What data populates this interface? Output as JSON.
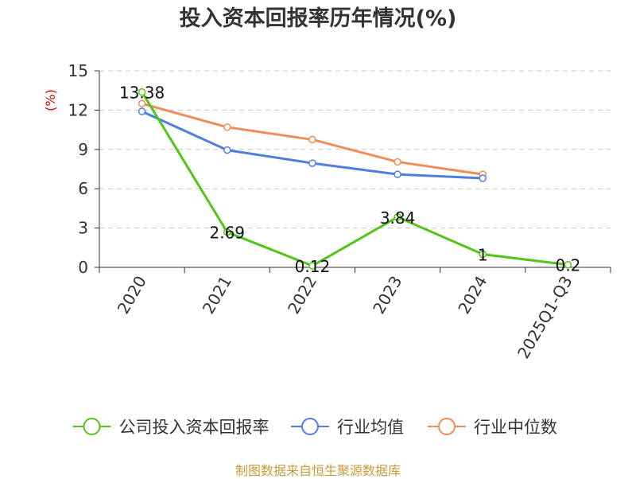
{
  "title": "投入资本回报率历年情况(%)",
  "source": "制图数据来自恒生聚源数据库",
  "chart_data": {
    "type": "line",
    "title": "投入资本回报率历年情况(%)",
    "ylabel": "(%)",
    "xlabel": "",
    "categories": [
      "2020",
      "2021",
      "2022",
      "2023",
      "2024",
      "2025Q1-Q3"
    ],
    "ylim": [
      0,
      15
    ],
    "yticks": [
      0,
      3,
      6,
      9,
      12,
      15
    ],
    "grid": true,
    "legend_position": "bottom",
    "series": [
      {
        "name": "公司投入资本回报率",
        "color": "#52c41a",
        "values": [
          13.38,
          2.69,
          0.12,
          3.84,
          1,
          0.2
        ],
        "labels": [
          "13.38",
          "2.69",
          "0.12",
          "3.84",
          "1",
          "0.2"
        ]
      },
      {
        "name": "行业均值",
        "color": "#4e7fdc",
        "values": [
          11.9,
          8.95,
          7.95,
          7.1,
          6.8,
          null
        ]
      },
      {
        "name": "行业中位数",
        "color": "#f08c5a",
        "values": [
          12.5,
          10.7,
          9.75,
          8.05,
          7.1,
          null
        ]
      }
    ]
  }
}
